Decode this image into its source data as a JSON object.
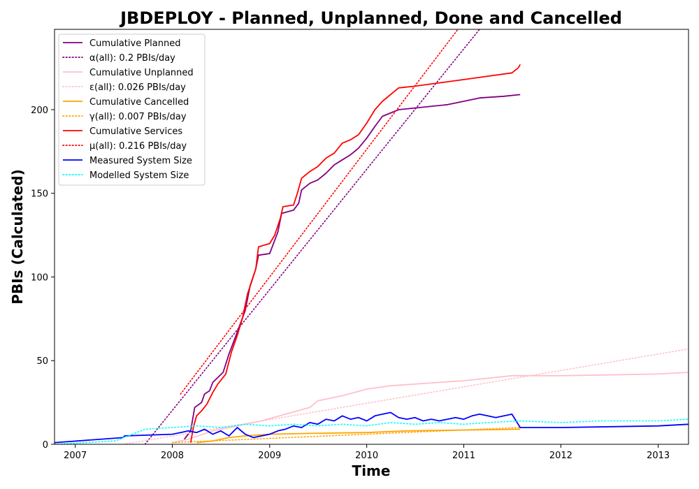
{
  "chart_data": {
    "type": "line",
    "title": "JBDEPLOY - Planned, Unplanned, Done  and Cancelled",
    "xlabel": "Time",
    "ylabel": "PBIs (Calculated)",
    "xlim": [
      "2006-10-15",
      "2013-04-25"
    ],
    "ylim": [
      0,
      248
    ],
    "x_ticks": [
      "2007",
      "2008",
      "2009",
      "2010",
      "2011",
      "2012",
      "2013"
    ],
    "x_tick_dates": [
      "2007-01-01",
      "2008-01-01",
      "2009-01-01",
      "2010-01-01",
      "2011-01-01",
      "2012-01-01",
      "2013-01-01"
    ],
    "y_ticks": [
      0,
      50,
      100,
      150,
      200
    ],
    "grid": false,
    "legend_position": "top-left",
    "series": [
      {
        "name": "Cumulative Planned",
        "color": "#800080",
        "style": "solid",
        "points": [
          [
            "2008-02-15",
            3
          ],
          [
            "2008-03-10",
            8
          ],
          [
            "2008-03-25",
            22
          ],
          [
            "2008-04-20",
            25
          ],
          [
            "2008-05-01",
            30
          ],
          [
            "2008-05-20",
            32
          ],
          [
            "2008-06-01",
            37
          ],
          [
            "2008-07-10",
            43
          ],
          [
            "2008-08-01",
            54
          ],
          [
            "2008-09-01",
            67
          ],
          [
            "2008-10-01",
            80
          ],
          [
            "2008-10-20",
            95
          ],
          [
            "2008-11-10",
            105
          ],
          [
            "2008-11-20",
            113
          ],
          [
            "2009-01-01",
            114
          ],
          [
            "2009-02-01",
            127
          ],
          [
            "2009-02-15",
            138
          ],
          [
            "2009-04-01",
            140
          ],
          [
            "2009-04-20",
            144
          ],
          [
            "2009-05-01",
            152
          ],
          [
            "2009-06-01",
            156
          ],
          [
            "2009-07-01",
            158
          ],
          [
            "2009-08-01",
            162
          ],
          [
            "2009-09-01",
            167
          ],
          [
            "2009-10-01",
            170
          ],
          [
            "2009-11-01",
            173
          ],
          [
            "2009-12-01",
            177
          ],
          [
            "2010-01-01",
            183
          ],
          [
            "2010-02-01",
            190
          ],
          [
            "2010-03-01",
            196
          ],
          [
            "2010-05-01",
            200
          ],
          [
            "2010-07-01",
            201
          ],
          [
            "2010-11-01",
            203
          ],
          [
            "2011-01-01",
            205
          ],
          [
            "2011-03-01",
            207
          ],
          [
            "2011-06-01",
            208
          ],
          [
            "2011-08-01",
            209
          ]
        ]
      },
      {
        "name": "α(all): 0.2 PBIs/day",
        "color": "#800080",
        "style": "dotted",
        "points": [
          [
            "2007-09-20",
            0
          ],
          [
            "2011-03-01",
            248
          ]
        ]
      },
      {
        "name": "Cumulative Unplanned",
        "color": "#ffc0cb",
        "style": "solid",
        "points": [
          [
            "2008-01-01",
            1
          ],
          [
            "2008-03-01",
            3
          ],
          [
            "2008-06-01",
            8
          ],
          [
            "2008-09-01",
            11
          ],
          [
            "2008-12-01",
            14
          ],
          [
            "2009-03-01",
            18
          ],
          [
            "2009-06-01",
            22
          ],
          [
            "2009-07-01",
            26
          ],
          [
            "2009-10-01",
            29
          ],
          [
            "2010-01-01",
            33
          ],
          [
            "2010-04-01",
            35
          ],
          [
            "2010-07-01",
            36
          ],
          [
            "2011-01-01",
            38
          ],
          [
            "2011-07-01",
            41
          ],
          [
            "2012-01-01",
            41
          ],
          [
            "2013-01-01",
            42
          ],
          [
            "2013-04-25",
            43
          ]
        ]
      },
      {
        "name": "ε(all): 0.026 PBIs/day",
        "color": "#ffc0cb",
        "style": "dotted",
        "points": [
          [
            "2007-07-01",
            0
          ],
          [
            "2013-04-25",
            57
          ]
        ]
      },
      {
        "name": "Cumulative Cancelled",
        "color": "#ffa500",
        "style": "solid",
        "points": [
          [
            "2008-04-01",
            1
          ],
          [
            "2008-06-01",
            2
          ],
          [
            "2008-08-01",
            4
          ],
          [
            "2008-10-01",
            5
          ],
          [
            "2009-01-01",
            6
          ],
          [
            "2009-06-01",
            6.5
          ],
          [
            "2010-01-01",
            7
          ],
          [
            "2010-06-01",
            8
          ],
          [
            "2011-01-01",
            8.5
          ],
          [
            "2011-08-01",
            9
          ]
        ]
      },
      {
        "name": "γ(all): 0.007 PBIs/day",
        "color": "#ffa500",
        "style": "dotted",
        "points": [
          [
            "2008-01-01",
            1
          ],
          [
            "2011-08-01",
            10
          ]
        ]
      },
      {
        "name": "Cumulative Services",
        "color": "#ff0000",
        "style": "solid",
        "points": [
          [
            "2008-03-10",
            1
          ],
          [
            "2008-03-20",
            10
          ],
          [
            "2008-04-01",
            17
          ],
          [
            "2008-04-20",
            20
          ],
          [
            "2008-05-10",
            24
          ],
          [
            "2008-06-01",
            31
          ],
          [
            "2008-06-20",
            36
          ],
          [
            "2008-07-20",
            42
          ],
          [
            "2008-08-10",
            55
          ],
          [
            "2008-09-01",
            65
          ],
          [
            "2008-09-20",
            75
          ],
          [
            "2008-10-10",
            90
          ],
          [
            "2008-10-25",
            97
          ],
          [
            "2008-11-10",
            105
          ],
          [
            "2008-11-20",
            118
          ],
          [
            "2009-01-01",
            120
          ],
          [
            "2009-01-20",
            125
          ],
          [
            "2009-02-10",
            135
          ],
          [
            "2009-02-20",
            142
          ],
          [
            "2009-04-01",
            143
          ],
          [
            "2009-04-15",
            150
          ],
          [
            "2009-05-01",
            159
          ],
          [
            "2009-06-01",
            163
          ],
          [
            "2009-07-01",
            166
          ],
          [
            "2009-08-01",
            171
          ],
          [
            "2009-09-01",
            174
          ],
          [
            "2009-10-01",
            180
          ],
          [
            "2009-11-01",
            182
          ],
          [
            "2009-12-01",
            185
          ],
          [
            "2010-01-01",
            192
          ],
          [
            "2010-02-01",
            200
          ],
          [
            "2010-03-01",
            205
          ],
          [
            "2010-05-01",
            213
          ],
          [
            "2010-07-01",
            214
          ],
          [
            "2010-10-01",
            216
          ],
          [
            "2011-01-01",
            218
          ],
          [
            "2011-04-01",
            220
          ],
          [
            "2011-07-01",
            222
          ],
          [
            "2011-07-25",
            225
          ],
          [
            "2011-08-01",
            227
          ]
        ]
      },
      {
        "name": "μ(all): 0.216 PBIs/day",
        "color": "#ff0000",
        "style": "dotted",
        "points": [
          [
            "2008-02-01",
            30
          ],
          [
            "2010-12-10",
            248
          ]
        ]
      },
      {
        "name": "Measured System Size",
        "color": "#0000ff",
        "style": "solid",
        "points": [
          [
            "2006-10-15",
            1
          ],
          [
            "2007-07-01",
            4
          ],
          [
            "2007-07-05",
            5
          ],
          [
            "2008-01-01",
            6
          ],
          [
            "2008-02-01",
            7
          ],
          [
            "2008-03-01",
            8
          ],
          [
            "2008-04-01",
            7
          ],
          [
            "2008-05-01",
            9
          ],
          [
            "2008-06-01",
            6
          ],
          [
            "2008-07-01",
            8
          ],
          [
            "2008-08-01",
            5
          ],
          [
            "2008-09-01",
            10
          ],
          [
            "2008-10-01",
            6
          ],
          [
            "2008-11-01",
            4
          ],
          [
            "2008-12-01",
            5
          ],
          [
            "2009-01-01",
            6
          ],
          [
            "2009-02-01",
            8
          ],
          [
            "2009-03-01",
            9
          ],
          [
            "2009-04-01",
            11
          ],
          [
            "2009-05-01",
            10
          ],
          [
            "2009-06-01",
            13
          ],
          [
            "2009-07-01",
            12
          ],
          [
            "2009-08-01",
            15
          ],
          [
            "2009-09-01",
            14
          ],
          [
            "2009-10-01",
            17
          ],
          [
            "2009-11-01",
            15
          ],
          [
            "2009-12-01",
            16
          ],
          [
            "2010-01-01",
            14
          ],
          [
            "2010-02-01",
            17
          ],
          [
            "2010-03-01",
            18
          ],
          [
            "2010-04-01",
            19
          ],
          [
            "2010-05-01",
            16
          ],
          [
            "2010-06-01",
            15
          ],
          [
            "2010-07-01",
            16
          ],
          [
            "2010-08-01",
            14
          ],
          [
            "2010-09-01",
            15
          ],
          [
            "2010-10-01",
            14
          ],
          [
            "2010-11-01",
            15
          ],
          [
            "2010-12-01",
            16
          ],
          [
            "2011-01-01",
            15
          ],
          [
            "2011-02-01",
            17
          ],
          [
            "2011-03-01",
            18
          ],
          [
            "2011-04-01",
            17
          ],
          [
            "2011-05-01",
            16
          ],
          [
            "2011-06-01",
            17
          ],
          [
            "2011-07-01",
            18
          ],
          [
            "2011-08-01",
            10
          ],
          [
            "2012-01-01",
            10
          ],
          [
            "2013-01-01",
            11
          ],
          [
            "2013-04-25",
            12
          ]
        ]
      },
      {
        "name": "Modelled System Size",
        "color": "#00ffff",
        "style": "dotted",
        "points": [
          [
            "2006-10-15",
            0
          ],
          [
            "2007-06-01",
            2
          ],
          [
            "2007-09-20",
            9
          ],
          [
            "2008-01-01",
            10
          ],
          [
            "2008-04-01",
            11
          ],
          [
            "2008-07-01",
            10
          ],
          [
            "2008-10-01",
            12
          ],
          [
            "2009-01-01",
            11
          ],
          [
            "2009-04-01",
            12
          ],
          [
            "2009-07-01",
            11
          ],
          [
            "2009-10-01",
            12
          ],
          [
            "2010-01-01",
            11
          ],
          [
            "2010-04-01",
            13
          ],
          [
            "2010-07-01",
            12
          ],
          [
            "2010-10-01",
            13
          ],
          [
            "2011-01-01",
            12
          ],
          [
            "2011-04-01",
            13
          ],
          [
            "2011-08-01",
            14
          ],
          [
            "2012-01-01",
            13
          ],
          [
            "2012-06-01",
            14
          ],
          [
            "2013-01-01",
            14
          ],
          [
            "2013-04-25",
            15
          ]
        ]
      }
    ]
  }
}
